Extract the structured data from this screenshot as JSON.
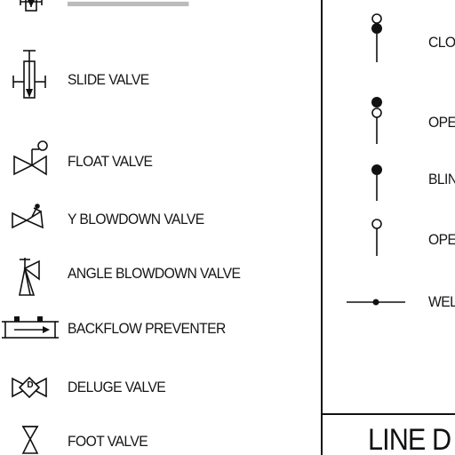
{
  "left_column": {
    "items": [
      {
        "name": "slide-valve",
        "label": "SLIDE VALVE",
        "icon": "slide-valve-icon"
      },
      {
        "name": "float-valve",
        "label": "FLOAT VALVE",
        "icon": "float-valve-icon"
      },
      {
        "name": "y-blowdown-valve",
        "label": "Y BLOWDOWN VALVE",
        "icon": "y-blowdown-valve-icon"
      },
      {
        "name": "angle-blowdown-valve",
        "label": "ANGLE BLOWDOWN VALVE",
        "icon": "angle-blowdown-valve-icon"
      },
      {
        "name": "backflow-preventer",
        "label": "BACKFLOW PREVENTER",
        "icon": "backflow-preventer-icon"
      },
      {
        "name": "deluge-valve",
        "label": "DELUGE VALVE",
        "icon": "deluge-valve-icon"
      },
      {
        "name": "foot-valve",
        "label": "FOOT VALVE",
        "icon": "foot-valve-icon"
      }
    ],
    "deluge_letter": "D"
  },
  "right_column": {
    "items": [
      {
        "label": "CLO",
        "icon": "closed-blind-icon"
      },
      {
        "label": "OPE",
        "icon": "open-blind-icon"
      },
      {
        "label": "BLIN",
        "icon": "blind-flange-icon"
      },
      {
        "label": "OPE",
        "icon": "open-spacer-icon"
      },
      {
        "label": "WEL",
        "icon": "weld-icon"
      }
    ]
  },
  "heading": "LINE D",
  "colors": {
    "ink": "#111111",
    "background": "#ffffff"
  }
}
